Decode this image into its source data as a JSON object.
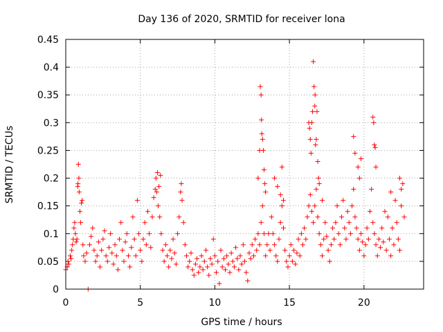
{
  "chart_data": {
    "type": "scatter",
    "title": "Day 136 of 2020, SRMTID for receiver lona",
    "xlabel": "GPS time / hours",
    "ylabel": "SRMTID / TECUs",
    "xlim": [
      0,
      24
    ],
    "ylim": [
      0,
      0.45
    ],
    "xticks": [
      0,
      5,
      10,
      15,
      20
    ],
    "xtick_labels": [
      "0",
      "5",
      "10",
      "15",
      "20"
    ],
    "yticks": [
      0,
      0.05,
      0.1,
      0.15,
      0.2,
      0.25,
      0.3,
      0.35,
      0.4,
      0.45
    ],
    "ytick_labels": [
      "0",
      "0.05",
      "0.1",
      "0.15",
      "0.2",
      "0.25",
      "0.3",
      "0.35",
      "0.4",
      "0.45"
    ],
    "grid": true,
    "marker": "+",
    "marker_color": "#ff0000",
    "series": [
      {
        "name": "SRMTID",
        "points": [
          [
            0.0,
            0.035
          ],
          [
            0.1,
            0.04
          ],
          [
            0.15,
            0.05
          ],
          [
            0.2,
            0.045
          ],
          [
            0.3,
            0.06
          ],
          [
            0.35,
            0.055
          ],
          [
            0.4,
            0.07
          ],
          [
            0.45,
            0.08
          ],
          [
            0.5,
            0.09
          ],
          [
            0.55,
            0.11
          ],
          [
            0.6,
            0.12
          ],
          [
            0.65,
            0.1
          ],
          [
            0.7,
            0.085
          ],
          [
            0.75,
            0.09
          ],
          [
            0.8,
            0.185
          ],
          [
            0.82,
            0.19
          ],
          [
            0.85,
            0.225
          ],
          [
            0.88,
            0.2
          ],
          [
            0.9,
            0.175
          ],
          [
            0.95,
            0.14
          ],
          [
            1.0,
            0.12
          ],
          [
            1.05,
            0.155
          ],
          [
            1.1,
            0.16
          ],
          [
            1.15,
            0.08
          ],
          [
            1.2,
            0.06
          ],
          [
            1.3,
            0.05
          ],
          [
            1.4,
            0.065
          ],
          [
            1.5,
            0.0
          ],
          [
            1.6,
            0.08
          ],
          [
            1.7,
            0.095
          ],
          [
            1.8,
            0.11
          ],
          [
            1.9,
            0.07
          ],
          [
            2.0,
            0.05
          ],
          [
            2.1,
            0.06
          ],
          [
            2.2,
            0.085
          ],
          [
            2.3,
            0.04
          ],
          [
            2.4,
            0.07
          ],
          [
            2.5,
            0.09
          ],
          [
            2.6,
            0.105
          ],
          [
            2.7,
            0.06
          ],
          [
            2.8,
            0.05
          ],
          [
            2.9,
            0.075
          ],
          [
            3.0,
            0.1
          ],
          [
            3.1,
            0.065
          ],
          [
            3.2,
            0.045
          ],
          [
            3.3,
            0.08
          ],
          [
            3.4,
            0.06
          ],
          [
            3.5,
            0.035
          ],
          [
            3.6,
            0.09
          ],
          [
            3.7,
            0.12
          ],
          [
            3.8,
            0.07
          ],
          [
            3.9,
            0.05
          ],
          [
            4.0,
            0.085
          ],
          [
            4.1,
            0.1
          ],
          [
            4.2,
            0.06
          ],
          [
            4.3,
            0.04
          ],
          [
            4.4,
            0.075
          ],
          [
            4.5,
            0.13
          ],
          [
            4.6,
            0.09
          ],
          [
            4.7,
            0.06
          ],
          [
            4.8,
            0.16
          ],
          [
            4.9,
            0.1
          ],
          [
            5.0,
            0.07
          ],
          [
            5.1,
            0.05
          ],
          [
            5.2,
            0.09
          ],
          [
            5.3,
            0.12
          ],
          [
            5.4,
            0.08
          ],
          [
            5.5,
            0.14
          ],
          [
            5.6,
            0.1
          ],
          [
            5.7,
            0.075
          ],
          [
            5.8,
            0.13
          ],
          [
            5.9,
            0.165
          ],
          [
            6.0,
            0.18
          ],
          [
            6.05,
            0.2
          ],
          [
            6.1,
            0.175
          ],
          [
            6.15,
            0.21
          ],
          [
            6.2,
            0.15
          ],
          [
            6.25,
            0.185
          ],
          [
            6.3,
            0.13
          ],
          [
            6.35,
            0.205
          ],
          [
            6.4,
            0.1
          ],
          [
            6.5,
            0.07
          ],
          [
            6.6,
            0.05
          ],
          [
            6.7,
            0.08
          ],
          [
            6.8,
            0.06
          ],
          [
            6.9,
            0.04
          ],
          [
            7.0,
            0.07
          ],
          [
            7.1,
            0.055
          ],
          [
            7.2,
            0.09
          ],
          [
            7.3,
            0.065
          ],
          [
            7.4,
            0.045
          ],
          [
            7.5,
            0.1
          ],
          [
            7.6,
            0.13
          ],
          [
            7.7,
            0.175
          ],
          [
            7.75,
            0.19
          ],
          [
            7.8,
            0.16
          ],
          [
            7.9,
            0.12
          ],
          [
            8.0,
            0.08
          ],
          [
            8.1,
            0.06
          ],
          [
            8.2,
            0.04
          ],
          [
            8.3,
            0.05
          ],
          [
            8.4,
            0.065
          ],
          [
            8.5,
            0.035
          ],
          [
            8.6,
            0.025
          ],
          [
            8.7,
            0.045
          ],
          [
            8.8,
            0.055
          ],
          [
            8.9,
            0.03
          ],
          [
            9.0,
            0.04
          ],
          [
            9.1,
            0.06
          ],
          [
            9.2,
            0.035
          ],
          [
            9.3,
            0.05
          ],
          [
            9.4,
            0.07
          ],
          [
            9.5,
            0.04
          ],
          [
            9.6,
            0.025
          ],
          [
            9.7,
            0.055
          ],
          [
            9.8,
            0.045
          ],
          [
            9.9,
            0.09
          ],
          [
            10.0,
            0.06
          ],
          [
            10.1,
            0.03
          ],
          [
            10.2,
            0.05
          ],
          [
            10.3,
            0.01
          ],
          [
            10.4,
            0.07
          ],
          [
            10.5,
            0.04
          ],
          [
            10.6,
            0.055
          ],
          [
            10.7,
            0.035
          ],
          [
            10.8,
            0.06
          ],
          [
            10.9,
            0.045
          ],
          [
            11.0,
            0.03
          ],
          [
            11.1,
            0.065
          ],
          [
            11.2,
            0.05
          ],
          [
            11.3,
            0.04
          ],
          [
            11.4,
            0.075
          ],
          [
            11.5,
            0.055
          ],
          [
            11.6,
            0.035
          ],
          [
            11.7,
            0.06
          ],
          [
            11.8,
            0.045
          ],
          [
            11.9,
            0.08
          ],
          [
            12.0,
            0.05
          ],
          [
            12.1,
            0.03
          ],
          [
            12.2,
            0.015
          ],
          [
            12.3,
            0.065
          ],
          [
            12.4,
            0.055
          ],
          [
            12.5,
            0.08
          ],
          [
            12.6,
            0.06
          ],
          [
            12.7,
            0.09
          ],
          [
            12.8,
            0.07
          ],
          [
            12.9,
            0.1
          ],
          [
            13.0,
            0.08
          ],
          [
            13.1,
            0.12
          ],
          [
            13.2,
            0.15
          ],
          [
            13.3,
            0.1
          ],
          [
            13.4,
            0.06
          ],
          [
            13.5,
            0.08
          ],
          [
            13.6,
            0.1
          ],
          [
            13.7,
            0.07
          ],
          [
            13.8,
            0.13
          ],
          [
            13.9,
            0.1
          ],
          [
            14.0,
            0.08
          ],
          [
            14.1,
            0.06
          ],
          [
            14.2,
            0.05
          ],
          [
            14.3,
            0.09
          ],
          [
            14.4,
            0.12
          ],
          [
            14.5,
            0.15
          ],
          [
            14.6,
            0.11
          ],
          [
            14.7,
            0.07
          ],
          [
            14.8,
            0.05
          ],
          [
            14.9,
            0.04
          ],
          [
            15.0,
            0.06
          ],
          [
            15.1,
            0.08
          ],
          [
            15.2,
            0.05
          ],
          [
            15.3,
            0.07
          ],
          [
            15.4,
            0.045
          ],
          [
            15.5,
            0.065
          ],
          [
            15.6,
            0.09
          ],
          [
            15.7,
            0.06
          ],
          [
            15.8,
            0.1
          ],
          [
            15.9,
            0.08
          ],
          [
            16.0,
            0.11
          ],
          [
            16.1,
            0.09
          ],
          [
            16.2,
            0.13
          ],
          [
            16.3,
            0.15
          ],
          [
            16.4,
            0.17
          ],
          [
            16.5,
            0.14
          ],
          [
            16.6,
            0.12
          ],
          [
            16.7,
            0.15
          ],
          [
            16.8,
            0.18
          ],
          [
            16.9,
            0.13
          ],
          [
            17.0,
            0.1
          ],
          [
            17.1,
            0.08
          ],
          [
            17.2,
            0.06
          ],
          [
            17.3,
            0.09
          ],
          [
            17.4,
            0.12
          ],
          [
            17.5,
            0.095
          ],
          [
            17.6,
            0.07
          ],
          [
            17.7,
            0.05
          ],
          [
            17.8,
            0.08
          ],
          [
            17.9,
            0.11
          ],
          [
            18.0,
            0.09
          ],
          [
            18.1,
            0.12
          ],
          [
            18.2,
            0.15
          ],
          [
            18.3,
            0.1
          ],
          [
            18.4,
            0.08
          ],
          [
            18.5,
            0.13
          ],
          [
            18.6,
            0.16
          ],
          [
            18.7,
            0.11
          ],
          [
            18.8,
            0.09
          ],
          [
            18.9,
            0.14
          ],
          [
            19.0,
            0.12
          ],
          [
            19.1,
            0.1
          ],
          [
            19.2,
            0.15
          ],
          [
            19.3,
            0.18
          ],
          [
            19.4,
            0.13
          ],
          [
            19.5,
            0.11
          ],
          [
            19.6,
            0.09
          ],
          [
            19.7,
            0.07
          ],
          [
            19.8,
            0.1
          ],
          [
            19.9,
            0.085
          ],
          [
            20.0,
            0.06
          ],
          [
            20.1,
            0.08
          ],
          [
            20.2,
            0.11
          ],
          [
            20.3,
            0.09
          ],
          [
            20.4,
            0.14
          ],
          [
            20.5,
            0.18
          ],
          [
            20.6,
            0.12
          ],
          [
            20.7,
            0.1
          ],
          [
            20.8,
            0.08
          ],
          [
            20.9,
            0.06
          ],
          [
            21.0,
            0.09
          ],
          [
            21.1,
            0.075
          ],
          [
            21.2,
            0.11
          ],
          [
            21.3,
            0.085
          ],
          [
            21.4,
            0.14
          ],
          [
            21.5,
            0.07
          ],
          [
            21.6,
            0.13
          ],
          [
            21.7,
            0.09
          ],
          [
            21.8,
            0.06
          ],
          [
            21.9,
            0.11
          ],
          [
            22.0,
            0.08
          ],
          [
            22.1,
            0.16
          ],
          [
            22.2,
            0.12
          ],
          [
            22.3,
            0.09
          ],
          [
            22.4,
            0.07
          ],
          [
            22.5,
            0.15
          ],
          [
            22.6,
            0.19
          ],
          [
            22.7,
            0.13
          ],
          [
            12.9,
            0.2
          ],
          [
            13.0,
            0.25
          ],
          [
            13.05,
            0.365
          ],
          [
            13.1,
            0.35
          ],
          [
            13.12,
            0.305
          ],
          [
            13.15,
            0.28
          ],
          [
            13.2,
            0.27
          ],
          [
            13.25,
            0.25
          ],
          [
            13.3,
            0.215
          ],
          [
            13.35,
            0.19
          ],
          [
            13.4,
            0.175
          ],
          [
            14.0,
            0.2
          ],
          [
            14.2,
            0.185
          ],
          [
            14.4,
            0.17
          ],
          [
            14.5,
            0.22
          ],
          [
            14.6,
            0.16
          ],
          [
            16.5,
            0.3
          ],
          [
            16.55,
            0.32
          ],
          [
            16.6,
            0.41
          ],
          [
            16.65,
            0.365
          ],
          [
            16.7,
            0.33
          ],
          [
            16.72,
            0.35
          ],
          [
            16.75,
            0.26
          ],
          [
            16.8,
            0.27
          ],
          [
            16.85,
            0.32
          ],
          [
            16.9,
            0.23
          ],
          [
            16.95,
            0.2
          ],
          [
            17.0,
            0.19
          ],
          [
            17.2,
            0.16
          ],
          [
            16.3,
            0.3
          ],
          [
            16.35,
            0.29
          ],
          [
            16.4,
            0.27
          ],
          [
            16.45,
            0.245
          ],
          [
            19.3,
            0.275
          ],
          [
            19.4,
            0.245
          ],
          [
            19.6,
            0.22
          ],
          [
            19.8,
            0.235
          ],
          [
            19.7,
            0.2
          ],
          [
            20.6,
            0.31
          ],
          [
            20.65,
            0.3
          ],
          [
            20.7,
            0.26
          ],
          [
            20.75,
            0.255
          ],
          [
            20.8,
            0.22
          ],
          [
            21.8,
            0.175
          ],
          [
            22.4,
            0.2
          ],
          [
            22.5,
            0.18
          ]
        ]
      }
    ]
  }
}
